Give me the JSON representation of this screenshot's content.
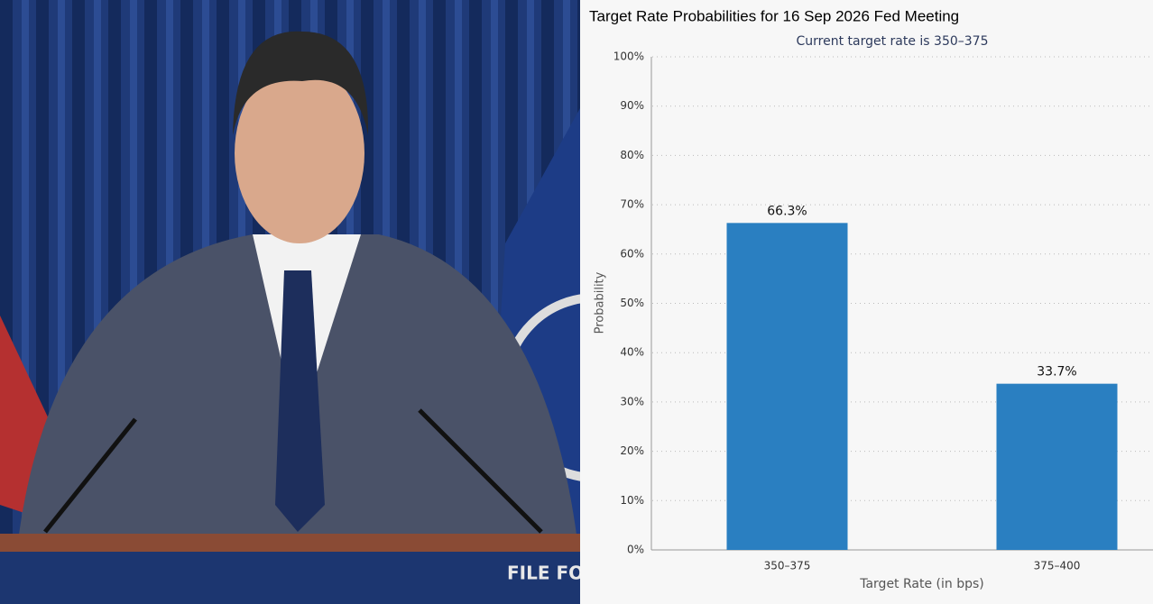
{
  "photo": {
    "podium_text": "FILE FO"
  },
  "chart_data": {
    "type": "bar",
    "title": "Target Rate Probabilities for 16 Sep 2026 Fed Meeting",
    "subtitle": "Current target rate is 350–375",
    "y_label": "Probability",
    "x_label": "Target Rate (in bps)",
    "categories": [
      "350–375",
      "375–400"
    ],
    "values": [
      66.3,
      33.7
    ],
    "value_labels": [
      "66.3%",
      "33.7%"
    ],
    "color": "#2a7fc1",
    "ylim": [
      0,
      100
    ],
    "yticks": [
      {
        "value": 0,
        "label": "0%"
      },
      {
        "value": 10,
        "label": "10%"
      },
      {
        "value": 20,
        "label": "20%"
      },
      {
        "value": 30,
        "label": "30%"
      },
      {
        "value": 40,
        "label": "40%"
      },
      {
        "value": 50,
        "label": "50%"
      },
      {
        "value": 60,
        "label": "60%"
      },
      {
        "value": 70,
        "label": "70%"
      },
      {
        "value": 80,
        "label": "80%"
      },
      {
        "value": 90,
        "label": "90%"
      },
      {
        "value": 100,
        "label": "100%"
      }
    ],
    "grid": true
  }
}
